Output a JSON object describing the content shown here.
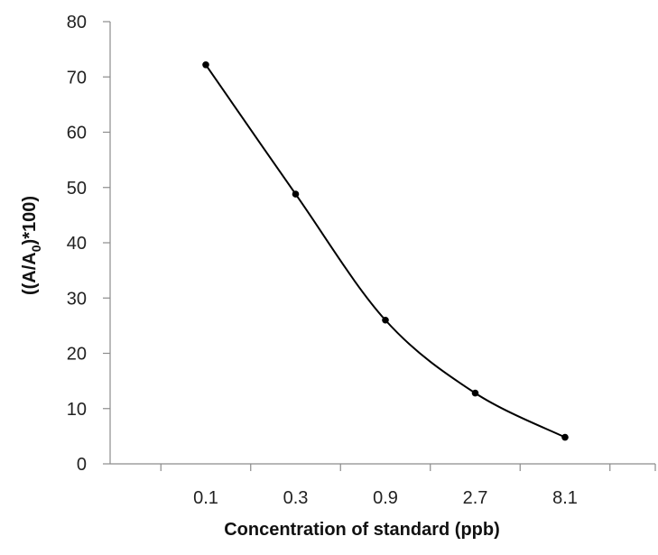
{
  "chart_data": {
    "type": "line",
    "categories": [
      "0.1",
      "0.3",
      "0.9",
      "2.7",
      "8.1"
    ],
    "series": [
      {
        "values": [
          72.2,
          48.8,
          26.0,
          12.8,
          4.8
        ]
      }
    ],
    "xlabel": "Concentration of standard (ppb)",
    "ylabel": {
      "prefix": "((A/A",
      "subscript": "0",
      "suffix": ")*100)"
    },
    "ylim": [
      0,
      80
    ],
    "yticks": [
      "0",
      "10",
      "20",
      "30",
      "40",
      "50",
      "60",
      "70",
      "80"
    ],
    "smooth": true,
    "markers": true,
    "grid": false,
    "colors": {
      "series": "#000000",
      "axis": "#8c8c8c"
    }
  }
}
